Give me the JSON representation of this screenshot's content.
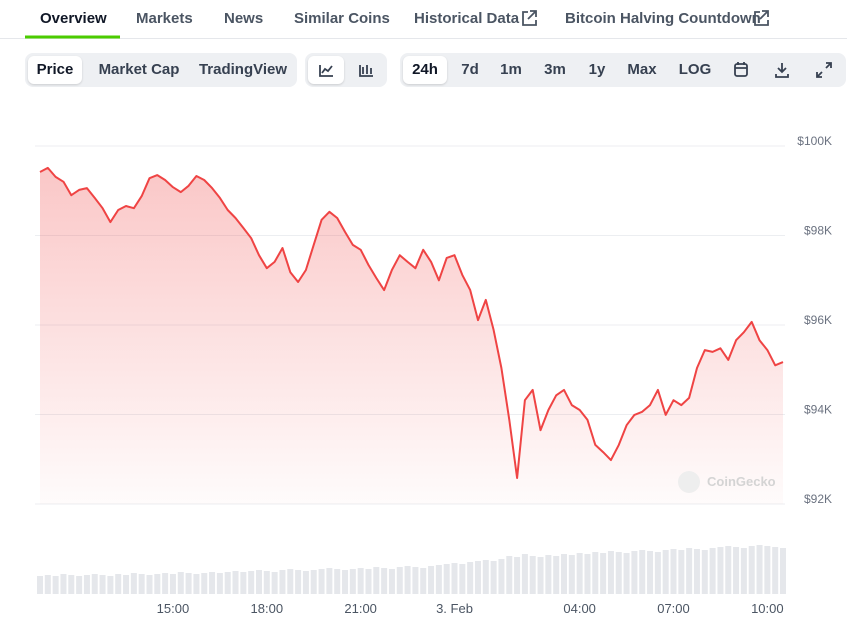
{
  "tabs": [
    "Overview",
    "Markets",
    "News",
    "Similar Coins",
    "Historical Data",
    "Bitcoin Halving Countdown"
  ],
  "view_buttons": [
    "Price",
    "Market Cap",
    "TradingView"
  ],
  "range_buttons": [
    "24h",
    "7d",
    "1m",
    "3m",
    "1y",
    "Max",
    "LOG"
  ],
  "watermark": "CoinGecko",
  "chart_data": {
    "type": "line",
    "color": "#ef4444",
    "ylim": [
      92000,
      100000
    ],
    "yticks": [
      {
        "value": 100000,
        "label": "$100K"
      },
      {
        "value": 98000,
        "label": "$98K"
      },
      {
        "value": 96000,
        "label": "$96K"
      },
      {
        "value": 94000,
        "label": "$94K"
      },
      {
        "value": 92000,
        "label": "$92K"
      }
    ],
    "grid": true,
    "categories": [
      null,
      null,
      null,
      null,
      null,
      null,
      null,
      null,
      null,
      null,
      null,
      null,
      null,
      null,
      null,
      null,
      null,
      "15:00",
      null,
      null,
      null,
      null,
      null,
      null,
      null,
      null,
      null,
      null,
      null,
      "18:00",
      null,
      null,
      null,
      null,
      null,
      null,
      null,
      null,
      null,
      null,
      null,
      "21:00",
      null,
      null,
      null,
      null,
      null,
      null,
      null,
      null,
      null,
      null,
      null,
      "3. Feb",
      null,
      null,
      null,
      null,
      null,
      null,
      null,
      null,
      null,
      null,
      null,
      null,
      null,
      null,
      null,
      "04:00",
      null,
      null,
      null,
      null,
      null,
      null,
      null,
      null,
      null,
      null,
      null,
      "07:00",
      null,
      null,
      null,
      null,
      null,
      null,
      null,
      null,
      null,
      null,
      null,
      "10:00",
      null,
      null
    ],
    "values": [
      99420,
      99510,
      99310,
      99200,
      98900,
      99020,
      99060,
      98840,
      98610,
      98300,
      98570,
      98660,
      98610,
      98880,
      99280,
      99350,
      99240,
      99080,
      98970,
      99110,
      99330,
      99240,
      99060,
      98840,
      98570,
      98390,
      98170,
      97940,
      97560,
      97270,
      97410,
      97720,
      97180,
      96960,
      97230,
      97790,
      98350,
      98530,
      98390,
      98080,
      97790,
      97680,
      97340,
      97050,
      96780,
      97230,
      97560,
      97410,
      97270,
      97680,
      97410,
      97000,
      97500,
      97560,
      97120,
      96780,
      96110,
      96560,
      95890,
      95040,
      93880,
      92580,
      94320,
      94550,
      93650,
      94100,
      94430,
      94550,
      94210,
      94100,
      93880,
      93320,
      93160,
      92980,
      93320,
      93760,
      93990,
      94060,
      94210,
      94550,
      93990,
      94320,
      94210,
      94370,
      95040,
      95440,
      95400,
      95480,
      95220,
      95660,
      95840,
      96070,
      95660,
      95440,
      95100,
      95170
    ],
    "volume": {
      "color": "#e5e7eb",
      "lim": [
        0,
        100
      ],
      "values": [
        18,
        19,
        18,
        20,
        19,
        18,
        19,
        20,
        19,
        18,
        20,
        19,
        21,
        20,
        19,
        20,
        21,
        20,
        22,
        21,
        20,
        21,
        22,
        21,
        22,
        23,
        22,
        23,
        24,
        23,
        22,
        24,
        25,
        24,
        23,
        24,
        25,
        26,
        25,
        24,
        25,
        26,
        25,
        27,
        26,
        25,
        27,
        28,
        27,
        26,
        28,
        29,
        30,
        31,
        30,
        32,
        33,
        34,
        33,
        35,
        38,
        37,
        40,
        38,
        37,
        39,
        38,
        40,
        39,
        41,
        40,
        42,
        41,
        43,
        42,
        41,
        43,
        44,
        43,
        42,
        44,
        45,
        44,
        46,
        45,
        44,
        46,
        47,
        48,
        47,
        46,
        48,
        49,
        48,
        47,
        46
      ]
    }
  }
}
